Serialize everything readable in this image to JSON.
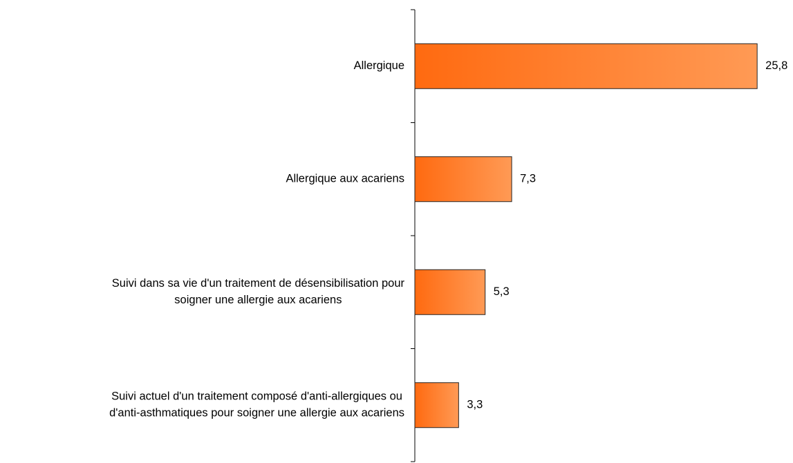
{
  "chart_data": {
    "type": "barh",
    "categories": [
      "Allergique",
      "Allergique aux acariens",
      "Suivi dans sa vie d'un traitement de désensibilisation pour\nsoigner une allergie aux acariens",
      "Suivi actuel d'un traitement composé d'anti-allergiques ou\nd'anti-asthmatiques pour soigner une allergie aux acariens"
    ],
    "values": [
      25.8,
      7.3,
      5.3,
      3.3
    ],
    "value_labels": [
      "25,8",
      "7,3",
      "5,3",
      "3,3"
    ],
    "color": "#ff6a10",
    "xlim": [
      0,
      26
    ]
  }
}
